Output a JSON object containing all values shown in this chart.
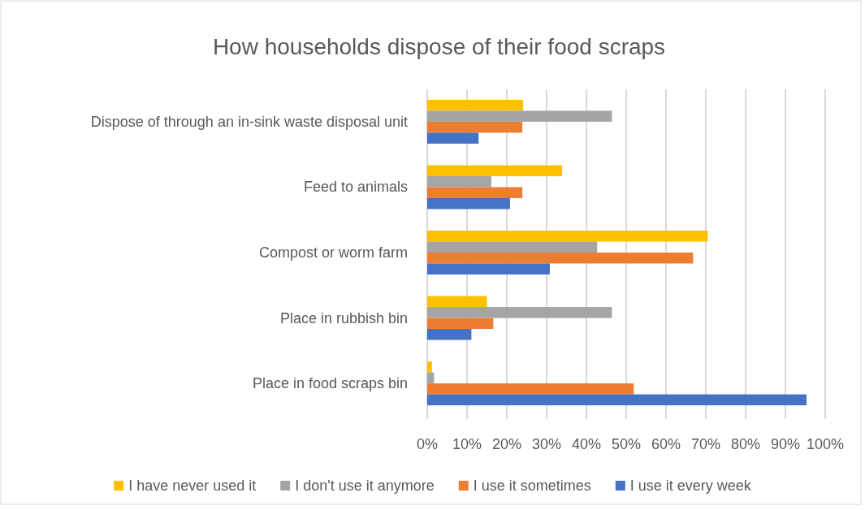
{
  "chart_data": {
    "type": "bar",
    "orientation": "horizontal",
    "title": "How households dispose of their food scraps",
    "categories": [
      "Dispose of through an in-sink waste disposal unit",
      "Feed to animals",
      "Compost or worm farm",
      "Place in rubbish bin",
      "Place in food scraps bin"
    ],
    "series": [
      {
        "name": "I have never used it",
        "color": "#ffc000",
        "values": [
          24.1,
          33.9,
          70.5,
          15.0,
          1.2
        ]
      },
      {
        "name": "I don't use it anymore",
        "color": "#a5a5a5",
        "values": [
          46.4,
          16.1,
          42.7,
          46.4,
          1.7
        ]
      },
      {
        "name": "I use it sometimes",
        "color": "#ed7d31",
        "values": [
          23.9,
          23.9,
          66.8,
          16.6,
          51.9
        ]
      },
      {
        "name": "I use it every week",
        "color": "#4472c4",
        "values": [
          12.9,
          20.8,
          30.8,
          11.1,
          95.3
        ]
      }
    ],
    "xlim": [
      0,
      100
    ],
    "xticks": [
      {
        "value": 0,
        "label": "0%"
      },
      {
        "value": 10,
        "label": "10%"
      },
      {
        "value": 20,
        "label": "20%"
      },
      {
        "value": 30,
        "label": "30%"
      },
      {
        "value": 40,
        "label": "40%"
      },
      {
        "value": 50,
        "label": "50%"
      },
      {
        "value": 60,
        "label": "60%"
      },
      {
        "value": 70,
        "label": "70%"
      },
      {
        "value": 80,
        "label": "80%"
      },
      {
        "value": 90,
        "label": "90%"
      },
      {
        "value": 100,
        "label": "100%"
      }
    ],
    "grid": "x",
    "legend": "bottom"
  }
}
